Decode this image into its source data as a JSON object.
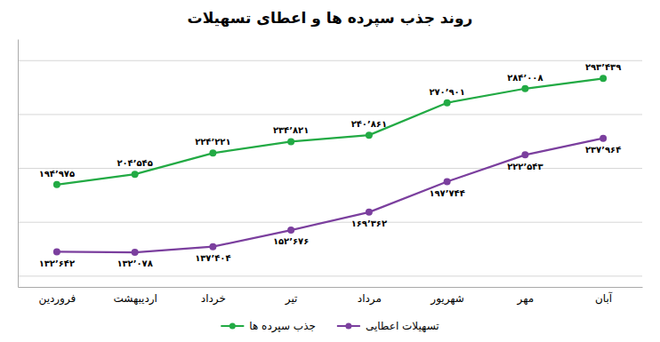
{
  "chart_data": {
    "type": "line",
    "title": "روند جذب سپرده ها و اعطای تسهیلات",
    "categories": [
      "فروردین",
      "اردیبهشت",
      "خرداد",
      "تیر",
      "مرداد",
      "شهریور",
      "مهر",
      "آبان"
    ],
    "series": [
      {
        "name": "جذب سپرده ها",
        "color": "#22aa44",
        "marker": "circle",
        "values": [
          194975,
          204545,
          224221,
          234821,
          240861,
          270901,
          284008,
          293439
        ],
        "value_labels": [
          "۱۹۴٬۹۷۵",
          "۲۰۴٬۵۴۵",
          "۲۲۴٬۲۲۱",
          "۲۳۴٬۸۲۱",
          "۲۴۰٬۸۶۱",
          "۲۷۰٬۹۰۱",
          "۲۸۴٬۰۰۸",
          "۲۹۳٬۴۳۹"
        ]
      },
      {
        "name": "تسهیلات اعطایی",
        "color": "#7b3f9e",
        "marker": "circle",
        "values": [
          132642,
          132078,
          137404,
          152676,
          169362,
          197744,
          222543,
          237964
        ],
        "value_labels": [
          "۱۳۲٬۶۴۲",
          "۱۳۲٬۰۷۸",
          "۱۳۷٬۴۰۴",
          "۱۵۲٬۶۷۶",
          "۱۶۹٬۳۶۲",
          "۱۹۷٬۷۴۴",
          "۲۲۲٬۵۴۳",
          "۲۳۷٬۹۶۴"
        ]
      }
    ],
    "ylim": [
      100000,
      330000
    ],
    "yticks": [
      110000,
      160000,
      210000,
      260000,
      310000
    ],
    "grid": true,
    "tick_labels": "x",
    "data_labels": true,
    "legend": "bottom"
  }
}
